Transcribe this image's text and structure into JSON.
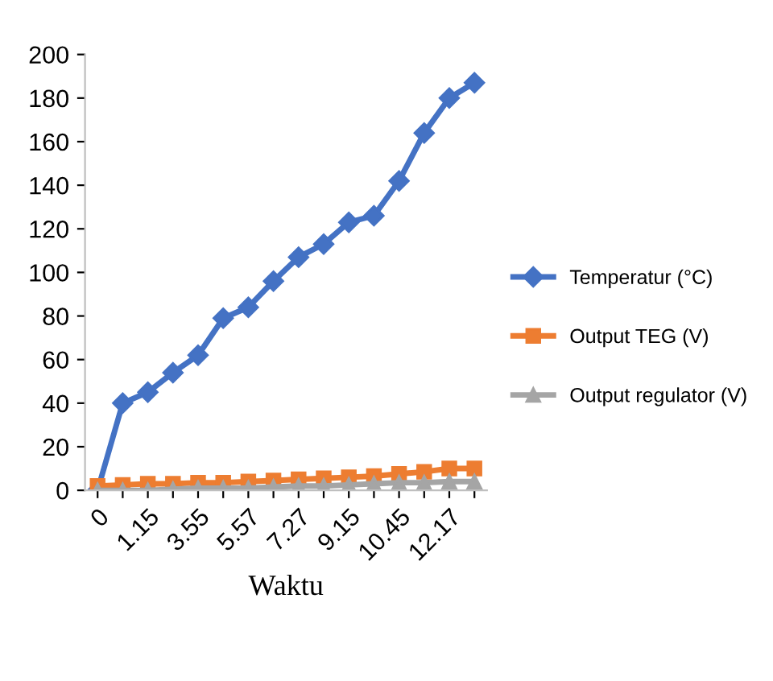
{
  "chart_data": {
    "type": "line",
    "xlabel": "Waktu",
    "categories": [
      "0",
      null,
      "1.15",
      null,
      "3.55",
      null,
      "5.57",
      null,
      "7.27",
      null,
      "9.15",
      null,
      "10.45",
      null,
      "12.17",
      null
    ],
    "series": [
      {
        "name": "Temperatur (°C)",
        "color": "#4472c4",
        "marker": "diamond",
        "values": [
          0,
          40,
          45,
          54,
          62,
          79,
          84,
          96,
          107,
          113,
          123,
          126,
          142,
          164,
          180,
          187
        ]
      },
      {
        "name": "Output TEG (V)",
        "color": "#ed7d31",
        "marker": "square",
        "values": [
          2,
          2.5,
          3,
          3,
          3.5,
          3.5,
          4,
          4.5,
          5,
          5.5,
          6,
          6.5,
          7.5,
          8.5,
          10,
          10
        ]
      },
      {
        "name": "Output regulator (V)",
        "color": "#a5a5a5",
        "marker": "triangle",
        "values": [
          0,
          0,
          0,
          0.5,
          1,
          1,
          1,
          1.5,
          2,
          2,
          2.5,
          3,
          3.5,
          3.5,
          4,
          4
        ]
      }
    ],
    "ylim": [
      0,
      200
    ],
    "yticks": [
      0,
      20,
      40,
      60,
      80,
      100,
      120,
      140,
      160,
      180,
      200
    ],
    "grid": false,
    "legend": "right",
    "line_style": "solid"
  }
}
